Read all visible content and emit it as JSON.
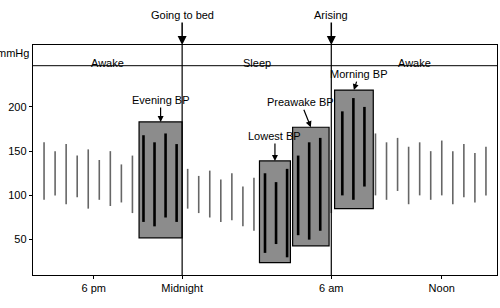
{
  "chart_data": {
    "type": "range",
    "ylabel": "mmHg",
    "color": "#666666",
    "x": [
      1,
      2,
      3,
      4,
      5,
      6,
      7,
      8,
      9,
      10,
      11,
      12,
      13,
      14,
      15,
      16,
      17,
      18,
      19,
      20,
      21,
      22,
      23,
      24,
      25,
      26,
      27,
      28,
      29,
      30,
      31,
      32,
      33,
      34,
      35,
      36,
      37,
      38,
      39,
      40,
      41
    ],
    "low": [
      95,
      100,
      90,
      98,
      85,
      95,
      88,
      92,
      80,
      70,
      65,
      75,
      70,
      85,
      80,
      75,
      70,
      72,
      65,
      60,
      35,
      45,
      30,
      55,
      50,
      60,
      80,
      100,
      95,
      110,
      100,
      95,
      105,
      90,
      100,
      95,
      100,
      90,
      98,
      92,
      100
    ],
    "high": [
      160,
      150,
      158,
      145,
      152,
      140,
      150,
      135,
      145,
      168,
      160,
      170,
      158,
      130,
      122,
      128,
      118,
      125,
      110,
      120,
      125,
      115,
      130,
      145,
      160,
      165,
      140,
      195,
      210,
      200,
      170,
      160,
      165,
      155,
      160,
      150,
      162,
      150,
      158,
      148,
      155
    ],
    "xlim": [
      0,
      42
    ],
    "xticks": [
      {
        "value": 5.5,
        "label": "6 pm"
      },
      {
        "value": 13.5,
        "label": "Midnight"
      },
      {
        "value": 27,
        "label": "6 am"
      },
      {
        "value": 37,
        "label": "Noon"
      }
    ],
    "ylim": [
      10,
      270
    ],
    "yticks": [
      50,
      100,
      150,
      200
    ],
    "grid": false,
    "regions": [
      {
        "label": "Awake",
        "x0": 0,
        "x1": 13.5
      },
      {
        "label": "Sleep",
        "x0": 13.5,
        "x1": 27
      },
      {
        "label": "Awake",
        "x0": 27,
        "x1": 42
      }
    ],
    "events": [
      {
        "label": "Going to bed",
        "x": 13.5
      },
      {
        "label": "Arising",
        "x": 27
      }
    ],
    "boxes": [
      {
        "label": "Evening BP",
        "x0": 9.6,
        "x1": 13.5,
        "y0": 52,
        "y1": 183
      },
      {
        "label": "Lowest BP",
        "x0": 20.5,
        "x1": 23.3,
        "y0": 24,
        "y1": 139
      },
      {
        "label": "Preawake BP",
        "x0": 23.5,
        "x1": 26.8,
        "y0": 43,
        "y1": 177
      },
      {
        "label": "Morning BP",
        "x0": 27.3,
        "x1": 30.8,
        "y0": 85,
        "y1": 219
      }
    ]
  }
}
